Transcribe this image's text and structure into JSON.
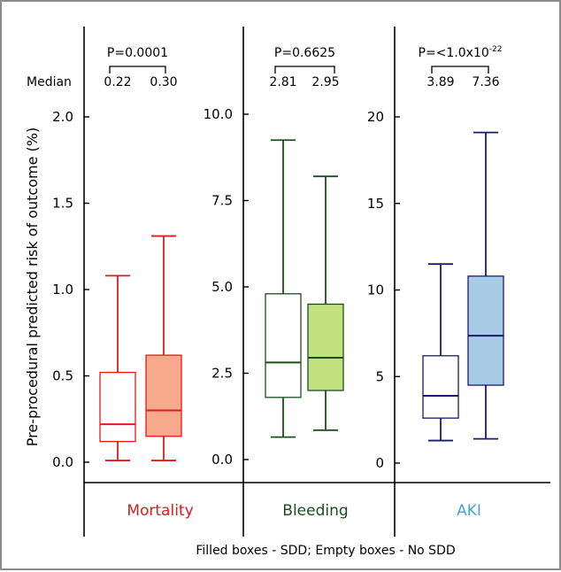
{
  "chart_data": {
    "type": "box",
    "ylabel": "Pre-procedural predicted risk of outcome (%)",
    "median_label": "Median",
    "footer": "Filled boxes - SDD; Empty boxes - No SDD",
    "panels": [
      {
        "name": "Mortality",
        "p_value": "P=0.0001",
        "color": "#e31a1c",
        "fill": "#f7a98b",
        "ylim": [
          0,
          2.0
        ],
        "ticks": [
          "0.0",
          "0.5",
          "1.0",
          "1.5",
          "2.0"
        ],
        "tick_values": [
          0,
          0.5,
          1.0,
          1.5,
          2.0
        ],
        "boxes": [
          {
            "group": "No SDD",
            "filled": false,
            "median_text": "0.22",
            "whisker_low": 0.01,
            "q1": 0.12,
            "median": 0.22,
            "q3": 0.52,
            "whisker_high": 1.08
          },
          {
            "group": "SDD",
            "filled": true,
            "median_text": "0.30",
            "whisker_low": 0.01,
            "q1": 0.15,
            "median": 0.3,
            "q3": 0.62,
            "whisker_high": 1.31
          }
        ]
      },
      {
        "name": "Bleeding",
        "p_value": "P=0.6625",
        "color": "#1b4d1f",
        "fill": "#c2e281",
        "ylim": [
          0,
          10.0
        ],
        "ticks": [
          "0.0",
          "2.5",
          "5.0",
          "7.5",
          "10.0"
        ],
        "tick_values": [
          0,
          2.5,
          5.0,
          7.5,
          10.0
        ],
        "boxes": [
          {
            "group": "No SDD",
            "filled": false,
            "median_text": "2.81",
            "whisker_low": 0.65,
            "q1": 1.8,
            "median": 2.81,
            "q3": 4.8,
            "whisker_high": 9.25
          },
          {
            "group": "SDD",
            "filled": true,
            "median_text": "2.95",
            "whisker_low": 0.85,
            "q1": 2.0,
            "median": 2.95,
            "q3": 4.5,
            "whisker_high": 8.2
          }
        ]
      },
      {
        "name": "AKI",
        "p_value": "P=<1.0x10",
        "p_exponent": "-22",
        "color": "#1a1a6e",
        "label_color": "#4a9fd4",
        "fill": "#a8cce6",
        "ylim": [
          0,
          20
        ],
        "ticks": [
          "0",
          "5",
          "10",
          "15",
          "20"
        ],
        "tick_values": [
          0,
          5,
          10,
          15,
          20
        ],
        "boxes": [
          {
            "group": "No SDD",
            "filled": false,
            "median_text": "3.89",
            "whisker_low": 1.3,
            "q1": 2.6,
            "median": 3.89,
            "q3": 6.2,
            "whisker_high": 11.5
          },
          {
            "group": "SDD",
            "filled": true,
            "median_text": "7.36",
            "whisker_low": 1.4,
            "q1": 4.5,
            "median": 7.36,
            "q3": 10.8,
            "whisker_high": 19.1
          }
        ]
      }
    ]
  }
}
